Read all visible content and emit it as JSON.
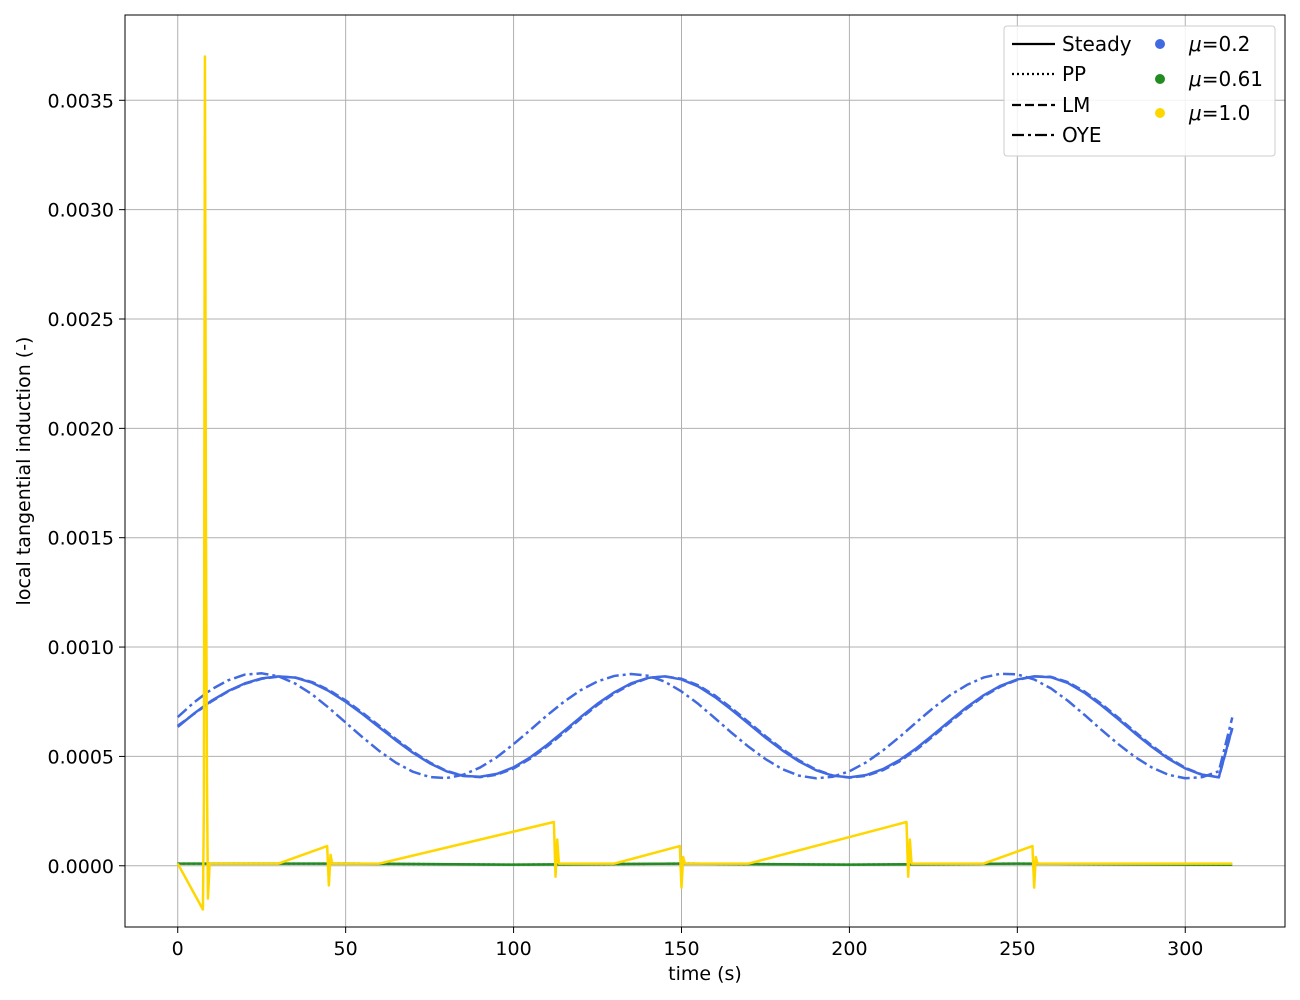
{
  "chart_data": {
    "type": "line",
    "title": "",
    "xlabel": "time (s)",
    "ylabel": "local tangential induction (-)",
    "xlim": [
      -15.7,
      329.7
    ],
    "ylim": [
      -0.00028,
      0.00389
    ],
    "xticks": [
      0,
      50,
      100,
      150,
      200,
      250,
      300
    ],
    "xtick_labels": [
      "0",
      "50",
      "100",
      "150",
      "200",
      "250",
      "300"
    ],
    "yticks": [
      0.0,
      0.0005,
      0.001,
      0.0015,
      0.002,
      0.0025,
      0.003,
      0.0035
    ],
    "ytick_labels": [
      "0.0000",
      "0.0005",
      "0.0010",
      "0.0015",
      "0.0020",
      "0.0025",
      "0.0030",
      "0.0035"
    ],
    "grid": true,
    "legend_position": "top-right",
    "legend": {
      "models": [
        {
          "label": "Steady",
          "style": "solid"
        },
        {
          "label": "PP",
          "style": "dotted"
        },
        {
          "label": "LM",
          "style": "dashed"
        },
        {
          "label": "OYE",
          "style": "dashdot"
        }
      ],
      "speeds": [
        {
          "prefix": "μ",
          "suffix": "=0.2",
          "color": "#4169e1"
        },
        {
          "prefix": "μ",
          "suffix": "=0.61",
          "color": "#228b22"
        },
        {
          "prefix": "μ",
          "suffix": "=1.0",
          "color": "#ffd700"
        }
      ]
    },
    "series": [
      {
        "speed": "μ=0.2",
        "model": "Steady",
        "color": "#4169e1",
        "x": [
          0,
          5,
          10,
          15,
          20,
          25,
          30,
          35,
          40,
          45,
          50,
          55,
          60,
          65,
          70,
          75,
          80,
          85,
          90,
          95,
          100,
          105,
          110,
          115,
          120,
          125,
          130,
          135,
          140,
          145,
          150,
          155,
          160,
          165,
          170,
          175,
          180,
          185,
          190,
          195,
          200,
          205,
          210,
          215,
          220,
          225,
          230,
          235,
          240,
          245,
          250,
          255,
          260,
          265,
          270,
          275,
          280,
          285,
          290,
          295,
          300,
          305,
          310,
          314
        ],
        "y": [
          0.000635,
          0.000698,
          0.000754,
          0.000799,
          0.000834,
          0.000857,
          0.000866,
          0.00086,
          0.000837,
          0.000799,
          0.00075,
          0.000694,
          0.000633,
          0.000573,
          0.000517,
          0.000469,
          0.000432,
          0.000411,
          0.000407,
          0.00042,
          0.00045,
          0.000496,
          0.000553,
          0.000616,
          0.00068,
          0.000741,
          0.000793,
          0.000834,
          0.000859,
          0.000866,
          0.000852,
          0.00082,
          0.000771,
          0.000712,
          0.000649,
          0.000586,
          0.000528,
          0.000477,
          0.000437,
          0.000412,
          0.000404,
          0.000415,
          0.000442,
          0.000484,
          0.000538,
          0.0006,
          0.000664,
          0.000726,
          0.00078,
          0.000823,
          0.000852,
          0.000866,
          0.000862,
          0.000836,
          0.000791,
          0.000734,
          0.000671,
          0.000606,
          0.000544,
          0.000489,
          0.000445,
          0.000416,
          0.000405,
          0.00063
        ]
      },
      {
        "speed": "μ=0.2",
        "model": "LM",
        "color": "#4169e1",
        "x": [
          0,
          5,
          10,
          15,
          20,
          25,
          30,
          35,
          40,
          45,
          50,
          55,
          60,
          65,
          70,
          75,
          80,
          85,
          90,
          95,
          100,
          105,
          110,
          115,
          120,
          125,
          130,
          135,
          140,
          145,
          150,
          155,
          160,
          165,
          170,
          175,
          180,
          185,
          190,
          195,
          200,
          205,
          210,
          215,
          220,
          225,
          230,
          235,
          240,
          245,
          250,
          255,
          260,
          265,
          270,
          275,
          280,
          285,
          290,
          295,
          300,
          305,
          310,
          314
        ],
        "y": [
          0.00064,
          0.000696,
          0.000751,
          0.000797,
          0.000832,
          0.000855,
          0.000865,
          0.000861,
          0.00084,
          0.000804,
          0.000756,
          0.0007,
          0.00064,
          0.000579,
          0.000522,
          0.000473,
          0.000434,
          0.000411,
          0.000405,
          0.000416,
          0.000445,
          0.00049,
          0.000546,
          0.000608,
          0.000673,
          0.000735,
          0.000788,
          0.00083,
          0.000858,
          0.000866,
          0.000855,
          0.000825,
          0.000778,
          0.00072,
          0.000657,
          0.000593,
          0.000534,
          0.000482,
          0.00044,
          0.000413,
          0.000403,
          0.000411,
          0.000437,
          0.000478,
          0.000531,
          0.000593,
          0.000657,
          0.000719,
          0.000775,
          0.000819,
          0.00085,
          0.000866,
          0.000864,
          0.00084,
          0.000797,
          0.000741,
          0.000678,
          0.000613,
          0.00055,
          0.000494,
          0.000448,
          0.000417,
          0.000404,
          0.000628
        ]
      },
      {
        "speed": "μ=0.2",
        "model": "OYE",
        "color": "#4169e1",
        "x": [
          0,
          5,
          10,
          15,
          20,
          25,
          30,
          35,
          40,
          45,
          50,
          55,
          60,
          65,
          70,
          75,
          80,
          85,
          90,
          95,
          100,
          105,
          110,
          115,
          120,
          125,
          130,
          135,
          140,
          145,
          150,
          155,
          160,
          165,
          170,
          175,
          180,
          185,
          190,
          195,
          200,
          205,
          210,
          215,
          220,
          225,
          230,
          235,
          240,
          245,
          250,
          255,
          260,
          265,
          270,
          275,
          280,
          285,
          290,
          295,
          300,
          305,
          310,
          314
        ],
        "y": [
          0.00068,
          0.000749,
          0.000806,
          0.000848,
          0.000874,
          0.00088,
          0.000866,
          0.000833,
          0.000784,
          0.000722,
          0.000655,
          0.000588,
          0.000525,
          0.000471,
          0.00043,
          0.000406,
          0.000401,
          0.000416,
          0.000449,
          0.000496,
          0.000556,
          0.000621,
          0.000688,
          0.00075,
          0.000803,
          0.000843,
          0.000868,
          0.000877,
          0.000869,
          0.000842,
          0.000797,
          0.00074,
          0.000674,
          0.000607,
          0.000544,
          0.000488,
          0.000442,
          0.000412,
          0.0004,
          0.000407,
          0.000432,
          0.000473,
          0.000527,
          0.00059,
          0.000657,
          0.000722,
          0.00078,
          0.000827,
          0.000861,
          0.000878,
          0.000875,
          0.000852,
          0.000811,
          0.000755,
          0.00069,
          0.000622,
          0.000557,
          0.000498,
          0.00045,
          0.000416,
          0.0004,
          0.000405,
          0.000432,
          0.000678
        ]
      },
      {
        "speed": "μ=0.61",
        "model": "Steady",
        "color": "#228b22",
        "x": [
          0,
          50,
          100,
          150,
          200,
          250,
          314
        ],
        "y": [
          1e-05,
          1e-05,
          5e-06,
          1e-05,
          5e-06,
          1e-05,
          5e-06
        ]
      },
      {
        "speed": "μ=0.61",
        "model": "PP",
        "color": "#228b22",
        "x": [
          0,
          50,
          100,
          150,
          200,
          250,
          314
        ],
        "y": [
          1e-05,
          1e-05,
          5e-06,
          1e-05,
          5e-06,
          1e-05,
          5e-06
        ]
      },
      {
        "speed": "μ=1.0",
        "model": "Steady",
        "color": "#ffd700",
        "x": [
          0,
          7.5,
          7.8,
          8.1,
          8.4,
          8.7,
          9.0,
          9.5,
          30,
          44.5,
          45.0,
          45.5,
          46.0,
          60,
          112,
          112.5,
          113.0,
          113.5,
          130,
          149.5,
          150.0,
          150.5,
          151.0,
          170,
          217,
          217.5,
          218.0,
          218.5,
          240,
          254.5,
          255.0,
          255.5,
          256.0,
          280,
          314
        ],
        "y": [
          1e-05,
          -0.0002,
          0.0003,
          0.0037,
          0.0016,
          0.0004,
          -0.00015,
          1e-05,
          1e-05,
          9e-05,
          -9e-05,
          5e-05,
          1e-05,
          1e-05,
          0.0002,
          -5e-05,
          0.00012,
          1e-05,
          1e-05,
          9e-05,
          -0.0001,
          4e-05,
          1e-05,
          1e-05,
          0.0002,
          -5e-05,
          0.00012,
          1e-05,
          1e-05,
          9e-05,
          -0.0001,
          4e-05,
          1e-05,
          1e-05,
          1e-05
        ]
      }
    ]
  }
}
